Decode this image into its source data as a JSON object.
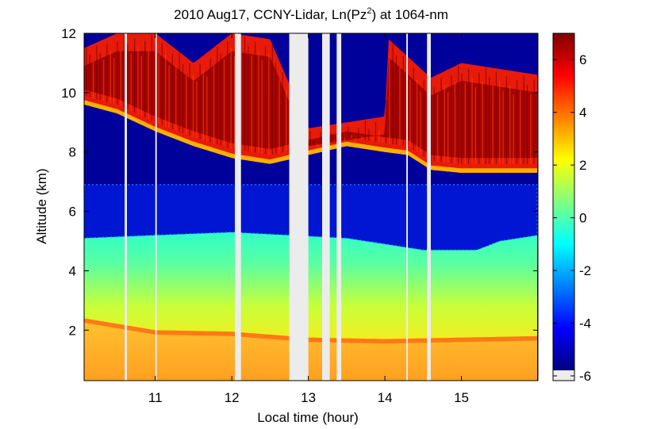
{
  "chart_data": {
    "type": "heatmap",
    "title": "2010 Aug17, CCNY-Lidar, Ln(Pz",
    "title_sup": "2",
    "title_suffix": ") at 1064-nm",
    "xlabel": "Local time (hour)",
    "ylabel": "Altitude (km)",
    "xlim": [
      10.07,
      16.0
    ],
    "ylim": [
      0.3,
      12
    ],
    "x_ticks": [
      11,
      12,
      13,
      14,
      15
    ],
    "y_ticks": [
      2,
      4,
      6,
      8,
      10,
      12
    ],
    "colorbar": {
      "range": [
        -6,
        7
      ],
      "ticks": [
        -6,
        -4,
        -2,
        0,
        2,
        4,
        6
      ],
      "missing_color": "#ececec"
    },
    "gaps": [
      [
        10.6,
        10.63
      ],
      [
        11.0,
        11.02
      ],
      [
        12.04,
        12.12
      ],
      [
        12.75,
        13.0
      ],
      [
        13.18,
        13.28
      ],
      [
        13.37,
        13.43
      ],
      [
        14.28,
        14.3
      ],
      [
        14.55,
        14.6
      ]
    ],
    "layers": {
      "cloud_base_km": [
        [
          10.07,
          9.6
        ],
        [
          10.5,
          9.3
        ],
        [
          11.0,
          8.7
        ],
        [
          11.5,
          8.2
        ],
        [
          12.0,
          7.8
        ],
        [
          12.5,
          7.6
        ],
        [
          13.0,
          7.9
        ],
        [
          13.5,
          8.2
        ],
        [
          14.0,
          8.0
        ],
        [
          14.3,
          7.9
        ],
        [
          14.6,
          7.4
        ],
        [
          15.0,
          7.3
        ],
        [
          15.5,
          7.3
        ],
        [
          16.0,
          7.3
        ]
      ],
      "cloud_top_km": [
        [
          10.07,
          11.5
        ],
        [
          10.5,
          12.0
        ],
        [
          11.0,
          12.0
        ],
        [
          11.5,
          11.0
        ],
        [
          12.0,
          12.0
        ],
        [
          12.5,
          11.8
        ],
        [
          13.0,
          8.8
        ],
        [
          13.5,
          9.0
        ],
        [
          14.0,
          9.2
        ],
        [
          14.05,
          11.8
        ],
        [
          14.6,
          10.5
        ],
        [
          15.0,
          11.0
        ],
        [
          15.5,
          10.8
        ],
        [
          16.0,
          10.6
        ]
      ],
      "blue_band_bottom_km": [
        [
          10.07,
          5.1
        ],
        [
          11.0,
          5.2
        ],
        [
          12.0,
          5.3
        ],
        [
          13.5,
          5.1
        ],
        [
          14.5,
          4.7
        ],
        [
          15.2,
          4.7
        ],
        [
          15.5,
          5.0
        ],
        [
          16.0,
          5.2
        ]
      ],
      "blue_band_top_km": [
        [
          10.07,
          6.9
        ],
        [
          16.0,
          6.9
        ]
      ],
      "boundary_layer_top_km": [
        [
          10.07,
          2.4
        ],
        [
          11.0,
          2.0
        ],
        [
          12.0,
          1.95
        ],
        [
          12.5,
          1.85
        ],
        [
          13.0,
          1.75
        ],
        [
          14.0,
          1.7
        ],
        [
          15.0,
          1.75
        ],
        [
          16.0,
          1.8
        ]
      ]
    }
  }
}
